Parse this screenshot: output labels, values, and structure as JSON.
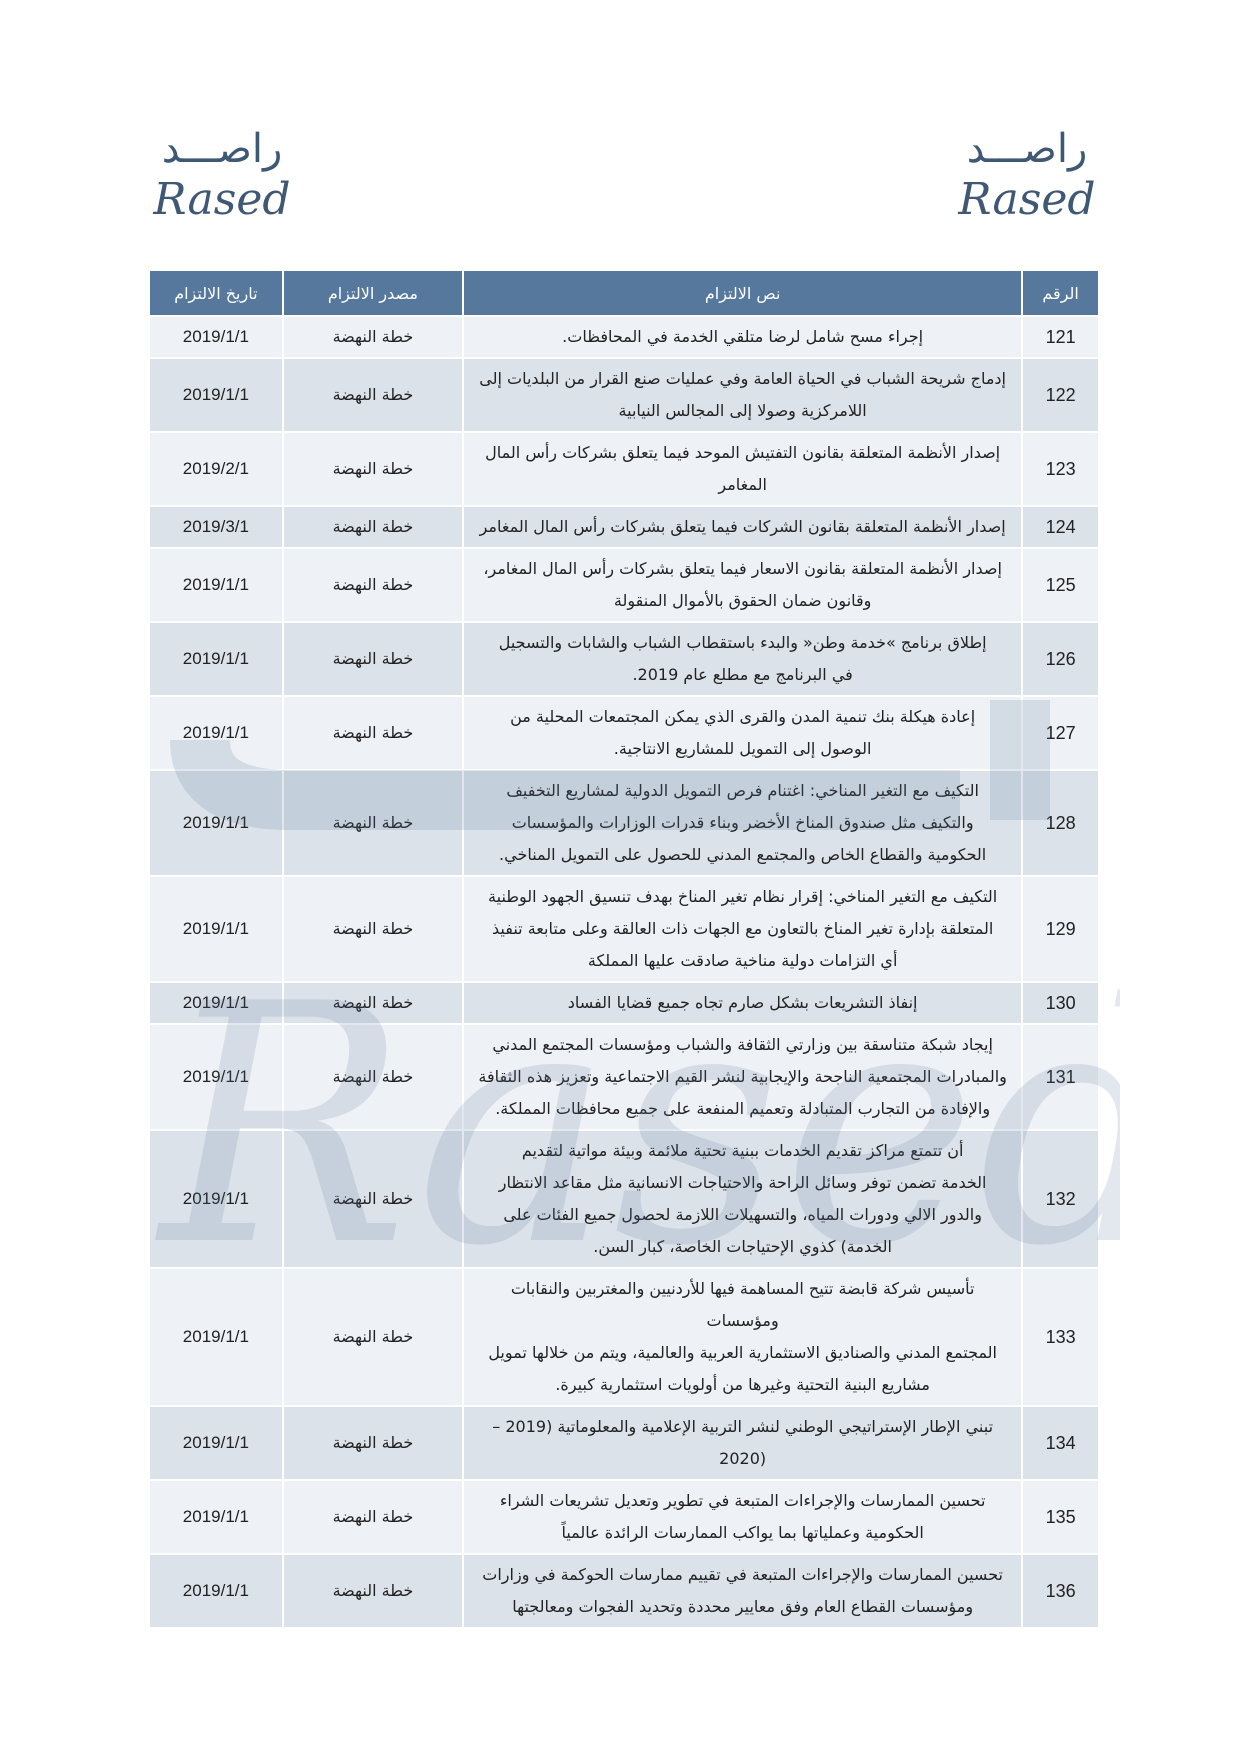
{
  "logo": {
    "arabic": "راصـــد",
    "latin": "Rased"
  },
  "watermark_text": "Rased",
  "colors": {
    "header": "#56789d",
    "row_light": "#eef1f5",
    "row_dark": "#dbe2ea",
    "logo": "#3f5874"
  },
  "table": {
    "headers": {
      "number": "الرقم",
      "text": "نص الالتزام",
      "source": "مصدر الالتزام",
      "date": "تاريخ الالتزام"
    },
    "rows": [
      {
        "number": "121",
        "lines": [
          "إجراء مسح شامل لرضا متلقي الخدمة في المحافظات."
        ],
        "source": "خطة النهضة",
        "date": "2019/1/1"
      },
      {
        "number": "122",
        "lines": [
          "إدماج شريحة الشباب في الحياة العامة وفي عمليات صنع القرار من البلديات إلى",
          "اللامركزية وصولا إلى المجالس النيابية"
        ],
        "source": "خطة النهضة",
        "date": "2019/1/1"
      },
      {
        "number": "123",
        "lines": [
          "إصدار الأنظمة المتعلقة بقانون التفتيش الموحد فيما يتعلق بشركات رأس المال",
          "المغامر"
        ],
        "source": "خطة النهضة",
        "date": "2019/2/1"
      },
      {
        "number": "124",
        "lines": [
          "إصدار الأنظمة المتعلقة بقانون الشركات فيما يتعلق بشركات رأس المال المغامر"
        ],
        "source": "خطة النهضة",
        "date": "2019/3/1"
      },
      {
        "number": "125",
        "lines": [
          "إصدار الأنظمة المتعلقة بقانون الاسعار فيما يتعلق بشركات رأس المال المغامر،",
          "وقانون ضمان الحقوق بالأموال المنقولة"
        ],
        "source": "خطة النهضة",
        "date": "2019/1/1"
      },
      {
        "number": "126",
        "lines": [
          "إطلاق برنامج »خدمة وطن« والبدء باستقطاب الشباب والشابات والتسجيل",
          "في البرنامج مع مطلع عام 2019."
        ],
        "source": "خطة النهضة",
        "date": "2019/1/1"
      },
      {
        "number": "127",
        "lines": [
          "إعادة هيكلة بنك تنمية المدن والقرى الذي يمكن المجتمعات المحلية من",
          "الوصول إلى التمويل للمشاريع الانتاجية."
        ],
        "source": "خطة النهضة",
        "date": "2019/1/1"
      },
      {
        "number": "128",
        "lines": [
          "التكيف مع التغير المناخي: اغتنام فرص التمويل الدولية لمشاريع التخفيف",
          "والتكيف مثل صندوق المناخ الأخضر وبناء قدرات الوزارات والمؤسسات",
          "الحكومية والقطاع الخاص والمجتمع المدني للحصول على التمويل المناخي."
        ],
        "source": "خطة النهضة",
        "date": "2019/1/1"
      },
      {
        "number": "129",
        "lines": [
          "التكيف مع التغير المناخي: إقرار نظام تغير المناخ بهدف تنسيق الجهود الوطنية",
          "المتعلقة بإدارة تغير المناخ بالتعاون مع الجهات ذات العالقة وعلى متابعة تنفيذ",
          "أي التزامات دولية مناخية صادقت عليها المملكة"
        ],
        "source": "خطة النهضة",
        "date": "2019/1/1"
      },
      {
        "number": "130",
        "lines": [
          "إنفاذ التشريعات بشكل صارم تجاه جميع قضايا الفساد"
        ],
        "source": "خطة النهضة",
        "date": "2019/1/1"
      },
      {
        "number": "131",
        "lines": [
          "إيجاد شبكة متناسقة بين وزارتي الثقافة والشباب ومؤسسات المجتمع المدني",
          "والمبادرات المجتمعية الناجحة والإيجابية لنشر القيم الاجتماعية وتعزيز هذه الثقافة",
          "والإفادة من التجارب المتبادلة وتعميم المنفعة على جميع محافظات المملكة."
        ],
        "source": "خطة النهضة",
        "date": "2019/1/1"
      },
      {
        "number": "132",
        "lines": [
          "أن تتمتع مراكز تقديم الخدمات ببنية تحتية ملائمة وبيئة مواتية لتقديم",
          "الخدمة تضمن توفر وسائل الراحة والاحتياجات الانسانية مثل مقاعد الانتظار",
          "والدور الالي ودورات المياه، والتسهيلات اللازمة لحصول جميع الفئات على",
          "الخدمة) كذوي الإحتياجات الخاصة، كبار السن."
        ],
        "source": "خطة النهضة",
        "date": "2019/1/1"
      },
      {
        "number": "133",
        "lines": [
          "تأسيس شركة قابضة تتيح المساهمة فيها للأردنيين والمغتربين والنقابات ومؤسسات",
          "المجتمع المدني والصناديق الاستثمارية العربية والعالمية، ويتم من خلالها تمويل",
          "مشاريع البنية التحتية وغيرها من أولويات استثمارية كبيرة."
        ],
        "source": "خطة النهضة",
        "date": "2019/1/1"
      },
      {
        "number": "134",
        "lines": [
          "تبني الإطار الإستراتيجي الوطني لنشر التربية الإعلامية والمعلوماتية (2019 –",
          "(2020"
        ],
        "source": "خطة النهضة",
        "date": "2019/1/1"
      },
      {
        "number": "135",
        "lines": [
          "تحسين الممارسات والإجراءات المتبعة في تطوير وتعديل تشريعات الشراء",
          "الحكومية وعملياتها بما يواكب الممارسات الرائدة عالمياً"
        ],
        "source": "خطة النهضة",
        "date": "2019/1/1"
      },
      {
        "number": "136",
        "lines": [
          "تحسين الممارسات والإجراءات المتبعة في تقييم ممارسات الحوكمة في وزارات",
          "ومؤسسات القطاع العام وفق معايير محددة وتحديد الفجوات ومعالجتها"
        ],
        "source": "خطة النهضة",
        "date": "2019/1/1"
      }
    ]
  }
}
